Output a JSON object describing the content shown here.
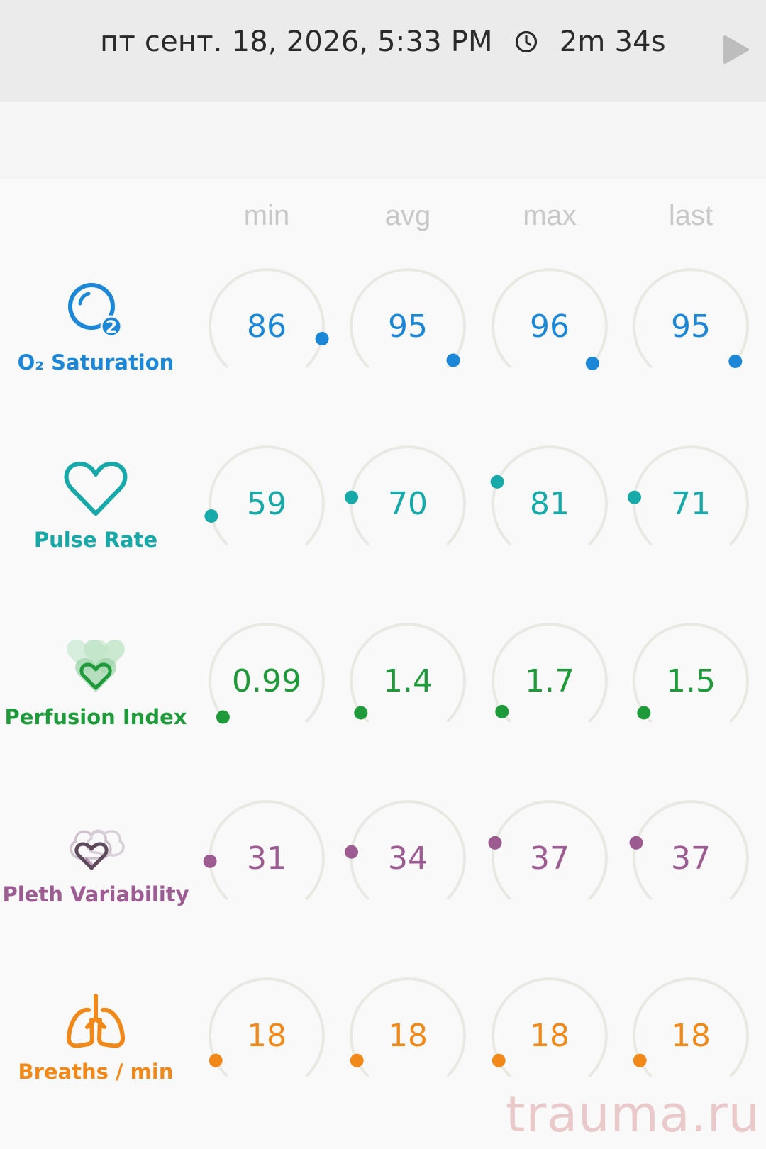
{
  "header": {
    "datetime": "пт сент. 18, 2026, 5:33 PM",
    "duration": "2m 34s",
    "clock_icon": "clock-icon",
    "play_icon": "play-icon"
  },
  "columns": [
    "min",
    "avg",
    "max",
    "last"
  ],
  "colors": {
    "track": "#e9e9e4",
    "header_bg": "#ebebeb",
    "column_header": "#c8c8c8"
  },
  "metrics": [
    {
      "key": "o2",
      "label": "O₂ Saturation",
      "icon": "o2-bubble-icon",
      "color": "#1b87d6",
      "values": [
        "86",
        "95",
        "96",
        "95"
      ],
      "fractions": [
        0.88,
        0.97,
        0.985,
        0.975
      ]
    },
    {
      "key": "pulse",
      "label": "Pulse Rate",
      "icon": "heart-outline-icon",
      "color": "#17a8a8",
      "values": [
        "59",
        "70",
        "81",
        "71"
      ],
      "fractions": [
        0.12,
        0.19,
        0.25,
        0.19
      ]
    },
    {
      "key": "perfusion",
      "label": "Perfusion Index",
      "icon": "layered-hearts-icon",
      "color": "#1f9a3a",
      "values": [
        "0.99",
        "1.4",
        "1.7",
        "1.5"
      ],
      "fractions": [
        0.02,
        0.04,
        0.045,
        0.04
      ]
    },
    {
      "key": "pleth",
      "label": "Pleth Variability",
      "icon": "pleth-hearts-icon",
      "color": "#9c5c92",
      "values": [
        "31",
        "34",
        "37",
        "37"
      ],
      "fractions": [
        0.155,
        0.19,
        0.225,
        0.225
      ]
    },
    {
      "key": "breaths",
      "label": "Breaths / min",
      "icon": "lungs-icon",
      "color": "#f0891a",
      "values": [
        "18",
        "18",
        "18",
        "18"
      ],
      "fractions": [
        0.07,
        0.07,
        0.07,
        0.07
      ]
    }
  ],
  "watermark": "trauma.ru"
}
